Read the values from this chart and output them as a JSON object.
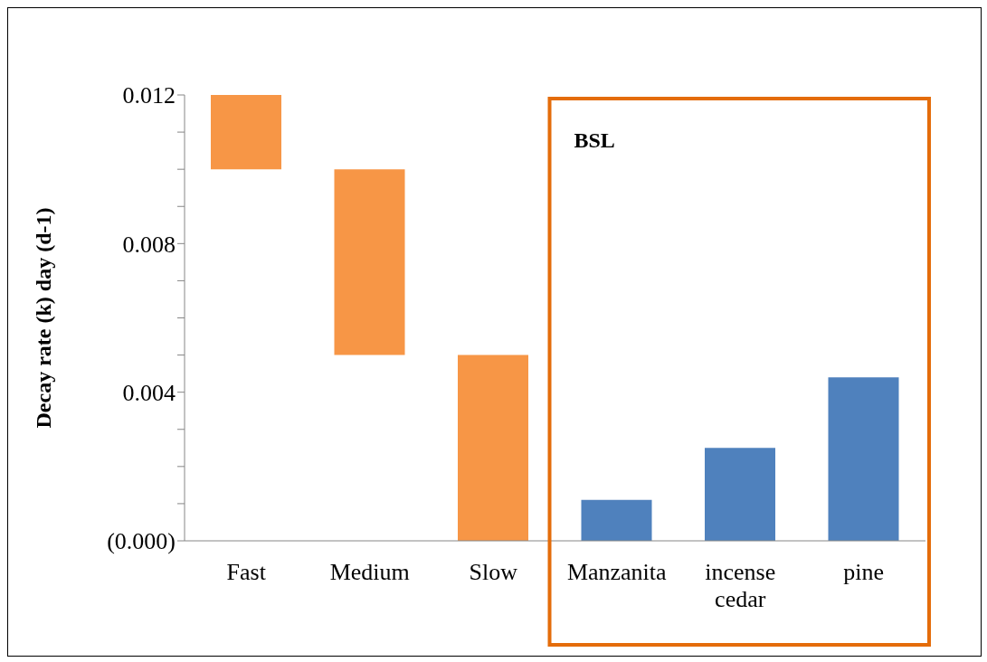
{
  "chart_data": {
    "type": "bar",
    "ylabel": "Decay rate (k) day (d-1)",
    "categories": [
      "Fast",
      "Medium",
      "Slow",
      "Manzanita",
      "incense cedar",
      "pine"
    ],
    "values": [
      0.002,
      0.005,
      0.005,
      0.0011,
      0.0025,
      0.0044
    ],
    "base": [
      0.01,
      0.005,
      0,
      0,
      0,
      0
    ],
    "colors": [
      "#f79646",
      "#f79646",
      "#f79646",
      "#4f81bd",
      "#4f81bd",
      "#4f81bd"
    ],
    "ylim": [
      0,
      0.012
    ],
    "yticks": [
      {
        "value": 0,
        "label": "(0.000)"
      },
      {
        "value": 0.001,
        "label": null
      },
      {
        "value": 0.002,
        "label": null
      },
      {
        "value": 0.003,
        "label": null
      },
      0.004,
      {
        "value": 0.005,
        "label": null
      },
      {
        "value": 0.006,
        "label": null
      },
      {
        "value": 0.007,
        "label": null
      },
      0.008,
      {
        "value": 0.009,
        "label": null
      },
      {
        "value": 0.01,
        "label": null
      },
      {
        "value": 0.011,
        "label": null
      },
      0.012
    ],
    "annotations": [
      "BSL"
    ],
    "grid": false,
    "legend": false
  }
}
